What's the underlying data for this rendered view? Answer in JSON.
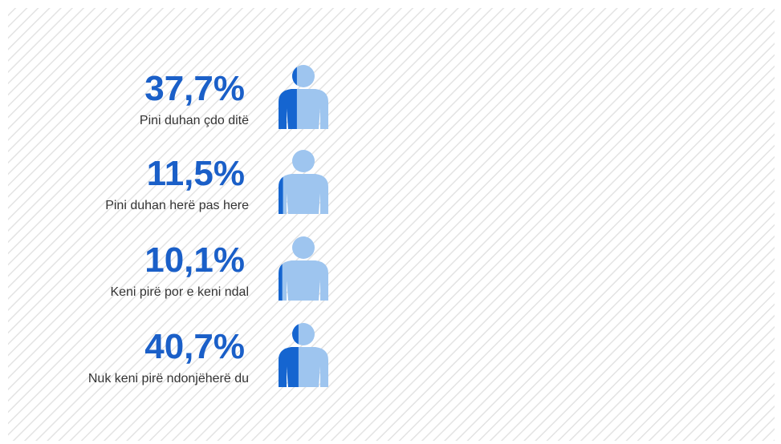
{
  "chart_data": {
    "type": "pictograph",
    "categories": [
      "Pini duhan çdo ditë",
      "Pini duhan herë pas here",
      "Keni pirë por e keni ndal",
      "Nuk keni pirë ndonjëherë du"
    ],
    "values": [
      37.7,
      11.5,
      10.1,
      40.7
    ],
    "value_labels": [
      "37,7%",
      "11,5%",
      "10,1%",
      "40,7%"
    ],
    "xlim": [
      0,
      100
    ],
    "color": "#1565d0",
    "background_color": "#9ec5ef"
  }
}
